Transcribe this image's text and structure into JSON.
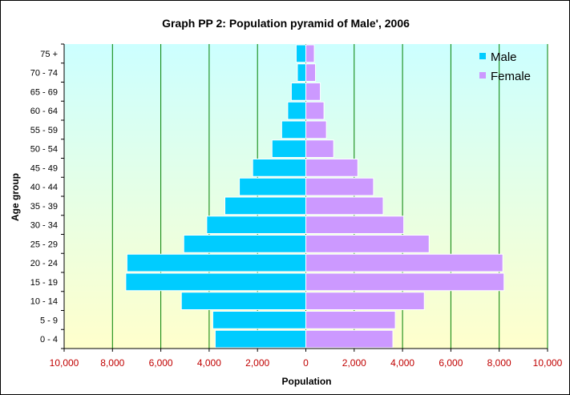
{
  "chart_data": {
    "type": "bar",
    "orientation": "horizontal-population-pyramid",
    "title": "Graph PP 2: Population pyramid of Male', 2006",
    "xlabel": "Population",
    "ylabel": "Age group",
    "xlim": [
      -10000,
      10000
    ],
    "x_ticks": [
      -10000,
      -8000,
      -6000,
      -4000,
      -2000,
      0,
      2000,
      4000,
      6000,
      8000,
      10000
    ],
    "x_tick_labels": [
      "10,000",
      "8,000",
      "6,000",
      "4,000",
      "2,000",
      "0",
      "2,000",
      "4,000",
      "6,000",
      "8,000",
      "10,000"
    ],
    "categories": [
      "0 - 4",
      "5 - 9",
      "10 - 14",
      "15 - 19",
      "20 - 24",
      "25 - 29",
      "30 - 34",
      "35 - 39",
      "40 - 44",
      "45 - 49",
      "50 - 54",
      "55 - 59",
      "60 - 64",
      "65 - 69",
      "70 - 74",
      "75 +"
    ],
    "series": [
      {
        "name": "Male",
        "color": "#00ccff",
        "side": "left",
        "values": [
          3750,
          3850,
          5150,
          7450,
          7400,
          5050,
          4100,
          3350,
          2750,
          2200,
          1400,
          1000,
          750,
          600,
          350,
          400
        ]
      },
      {
        "name": "Female",
        "color": "#cc99ff",
        "side": "right",
        "values": [
          3600,
          3700,
          4900,
          8200,
          8150,
          5100,
          4050,
          3200,
          2800,
          2150,
          1150,
          850,
          750,
          600,
          400,
          350
        ]
      }
    ],
    "grid": true,
    "grid_color": "#008000",
    "legend_position": "top-right",
    "background_gradient": [
      "#ccffff",
      "#ffffcc"
    ],
    "tick_label_color": "#c00000"
  }
}
